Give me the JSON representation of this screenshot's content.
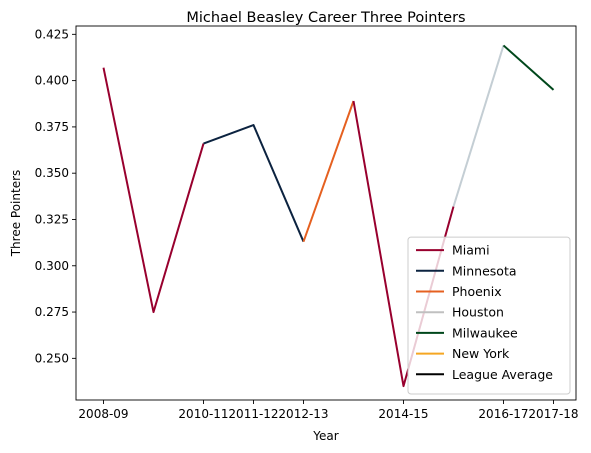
{
  "chart_data": {
    "type": "line",
    "title": "Michael Beasley Career Three Pointers",
    "xlabel": "Year",
    "ylabel": "Three Pointers",
    "x_ticks": [
      "2008-09",
      "2010-11",
      "2011-12",
      "2012-13",
      "2014-15",
      "2016-17",
      "2017-18"
    ],
    "x_tick_positions": [
      0,
      2,
      3,
      4,
      6,
      8,
      9
    ],
    "y_ticks": [
      "0.250",
      "0.275",
      "0.300",
      "0.325",
      "0.350",
      "0.375",
      "0.400",
      "0.425"
    ],
    "xlim": [
      -0.55,
      9.45
    ],
    "ylim": [
      0.2275,
      0.4295
    ],
    "grid": false,
    "legend_position": "lower-right",
    "series": [
      {
        "name": "Miami",
        "color": "#98002E",
        "points": [
          [
            0,
            0.407
          ],
          [
            1,
            0.275
          ],
          [
            2,
            0.366
          ]
        ]
      },
      {
        "name": "Minnesota",
        "color": "#0C2340",
        "points": [
          [
            2,
            0.366
          ],
          [
            3,
            0.376
          ],
          [
            4,
            0.313
          ]
        ]
      },
      {
        "name": "Phoenix",
        "color": "#E56020",
        "points": [
          [
            4,
            0.313
          ],
          [
            5,
            0.389
          ]
        ]
      },
      {
        "name": "Miami",
        "color": "#98002E",
        "points": [
          [
            5,
            0.389
          ],
          [
            6,
            0.235
          ],
          [
            7,
            0.332
          ]
        ]
      },
      {
        "name": "Houston",
        "color": "#C4CED4",
        "points": [
          [
            7,
            0.332
          ],
          [
            8,
            0.419
          ]
        ]
      },
      {
        "name": "Milwaukee",
        "color": "#00471B",
        "points": [
          [
            8,
            0.419
          ],
          [
            9,
            0.395
          ]
        ]
      }
    ],
    "legend": [
      {
        "label": "Miami",
        "color": "#98002E"
      },
      {
        "label": "Minnesota",
        "color": "#0C2340"
      },
      {
        "label": "Phoenix",
        "color": "#E56020"
      },
      {
        "label": "Houston",
        "color": "#C0C0C0"
      },
      {
        "label": "Milwaukee",
        "color": "#00471B"
      },
      {
        "label": "New York",
        "color": "#F5A623"
      },
      {
        "label": "League Average",
        "color": "#000000"
      }
    ]
  }
}
